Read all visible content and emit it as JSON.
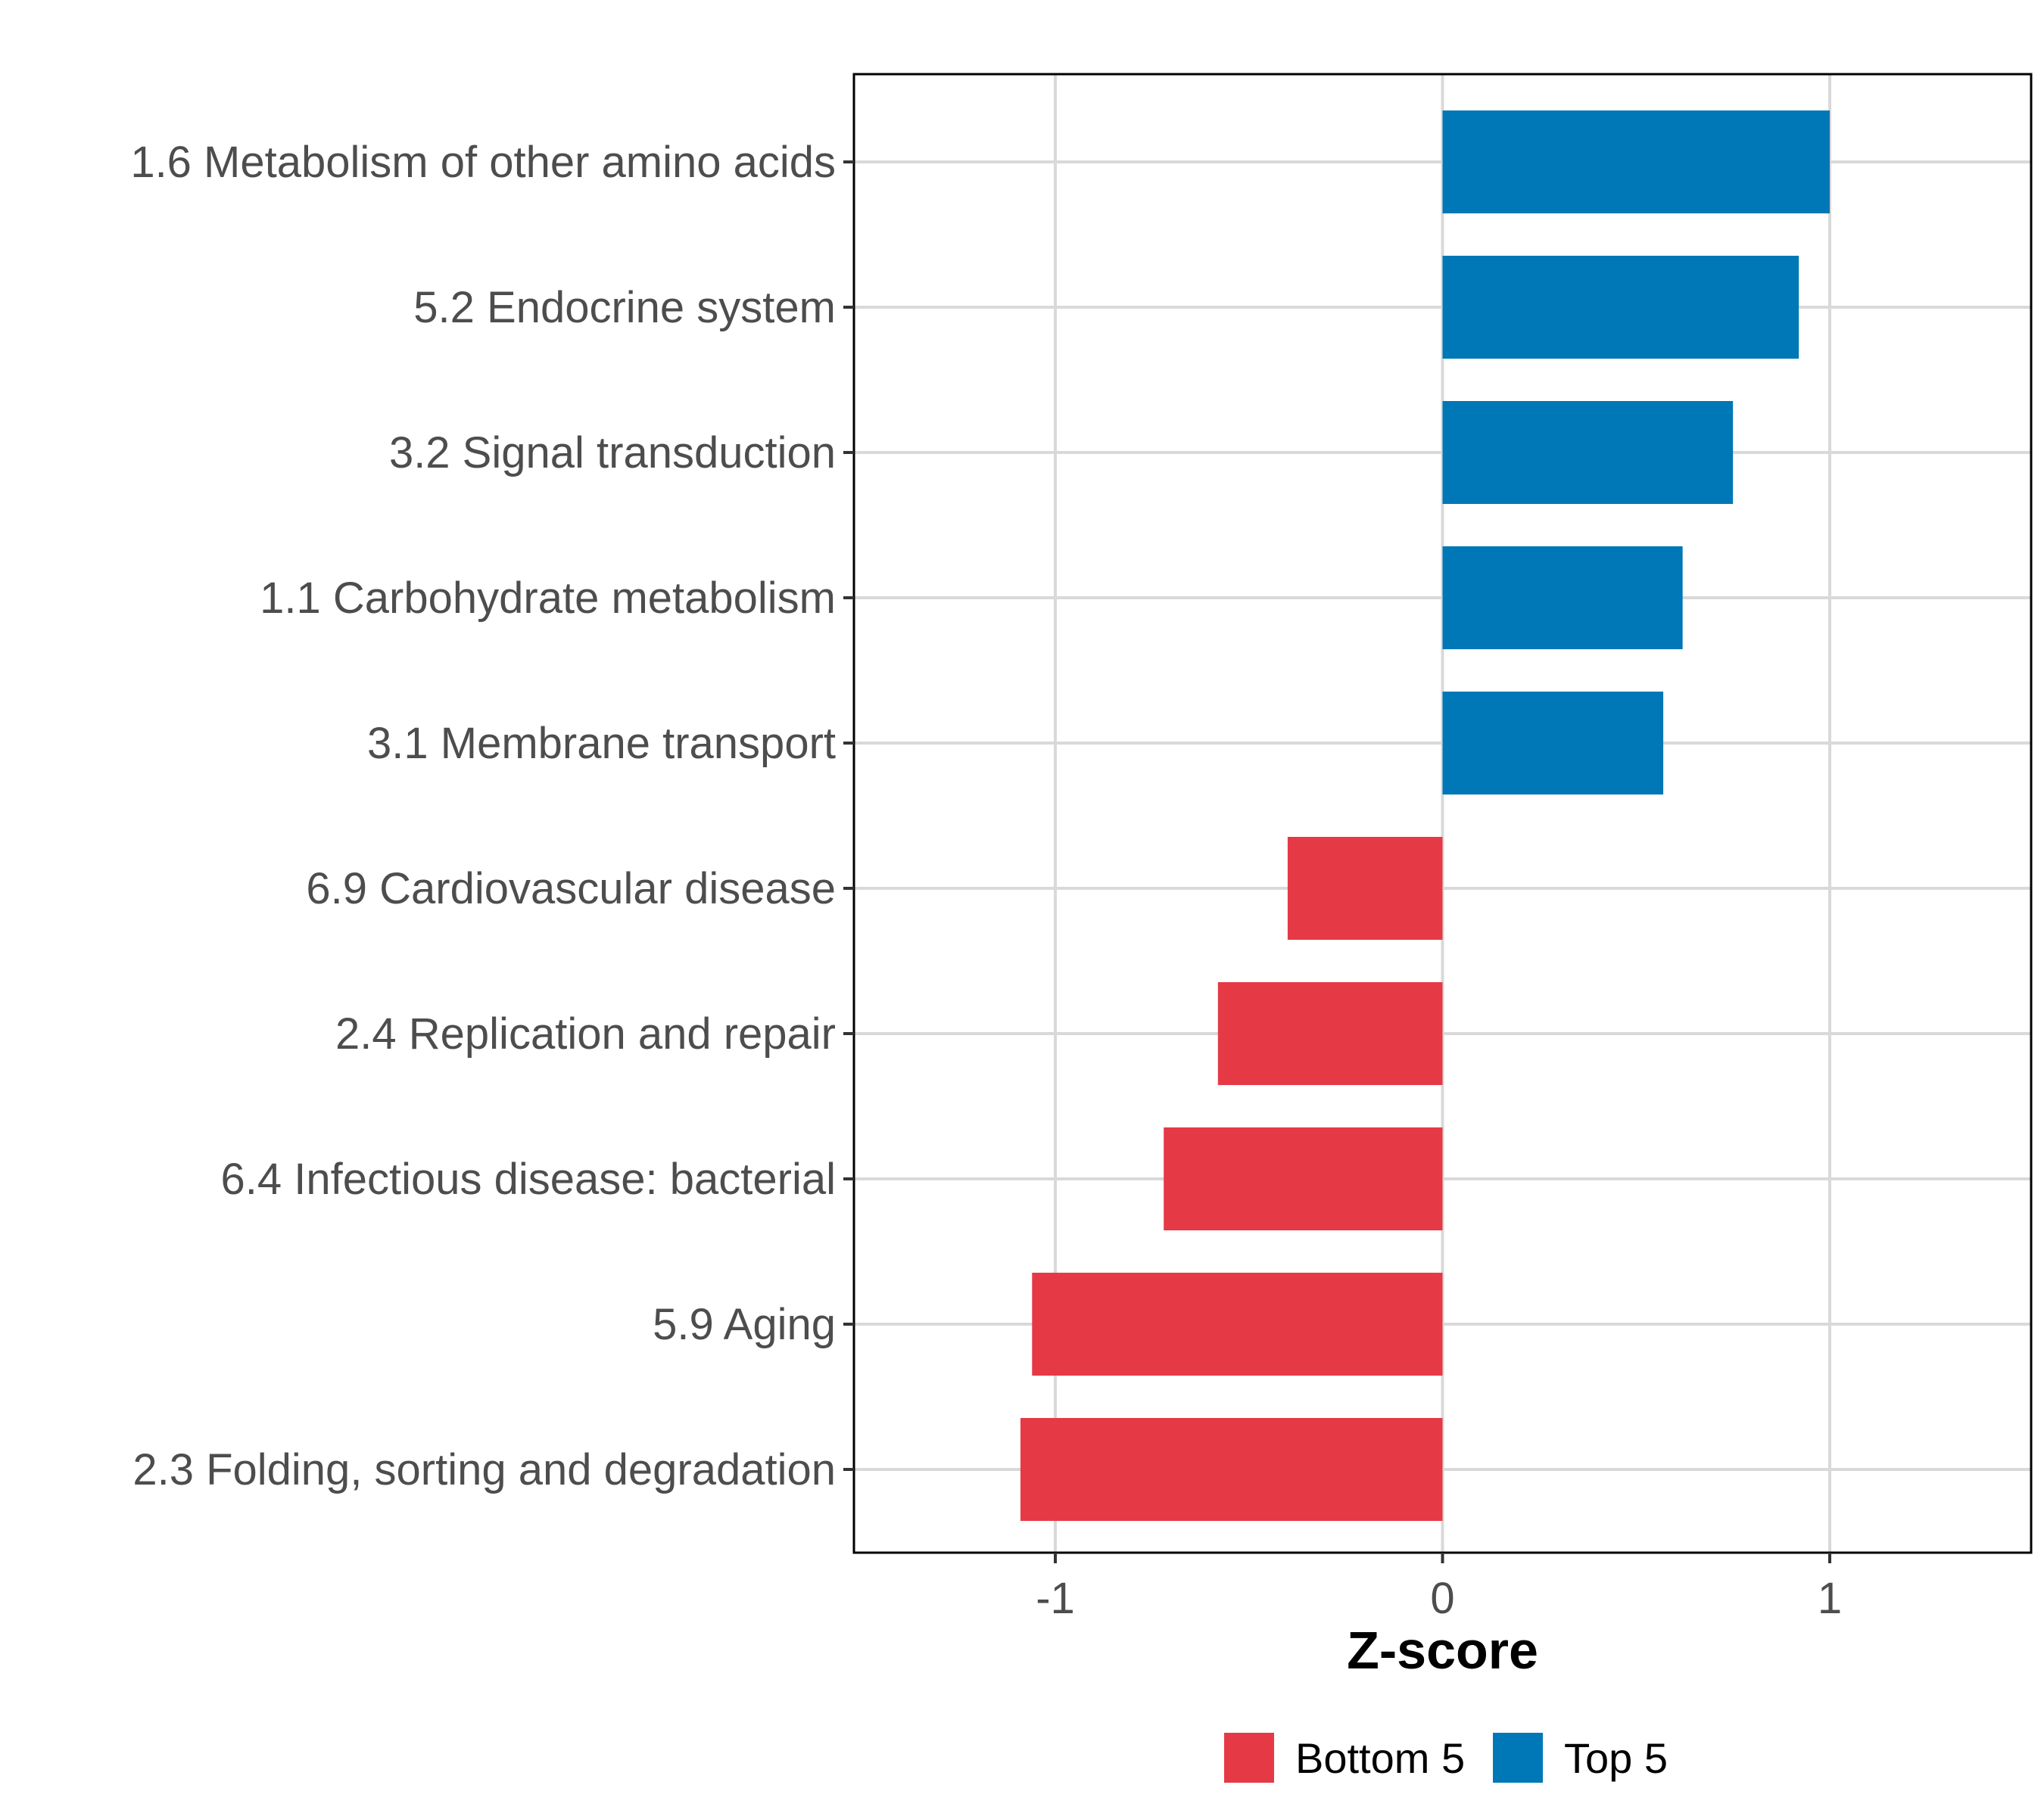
{
  "chart_data": {
    "type": "bar",
    "orientation": "horizontal",
    "title": "",
    "xlabel": "Z-score",
    "ylabel": "",
    "xlim": [
      -1.52,
      1.52
    ],
    "xticks": [
      -1,
      0,
      1
    ],
    "xtick_labels": [
      "-1",
      "0",
      "1"
    ],
    "grid": true,
    "legend_position": "bottom",
    "categories": [
      "1.6 Metabolism of other amino acids",
      "5.2 Endocrine system",
      "3.2 Signal transduction",
      "1.1 Carbohydrate metabolism",
      "3.1 Membrane transport",
      "6.9 Cardiovascular disease",
      "2.4 Replication and repair",
      "6.4 Infectious disease: bacterial",
      "5.9 Aging",
      "2.3 Folding, sorting and degradation"
    ],
    "values": [
      1.0,
      0.92,
      0.75,
      0.62,
      0.57,
      -0.4,
      -0.58,
      -0.72,
      -1.06,
      -1.09
    ],
    "groups": [
      "Top 5",
      "Top 5",
      "Top 5",
      "Top 5",
      "Top 5",
      "Bottom 5",
      "Bottom 5",
      "Bottom 5",
      "Bottom 5",
      "Bottom 5"
    ],
    "legend": [
      {
        "name": "Bottom 5",
        "color": "#E63946"
      },
      {
        "name": "Top 5",
        "color": "#0077B6"
      }
    ]
  }
}
